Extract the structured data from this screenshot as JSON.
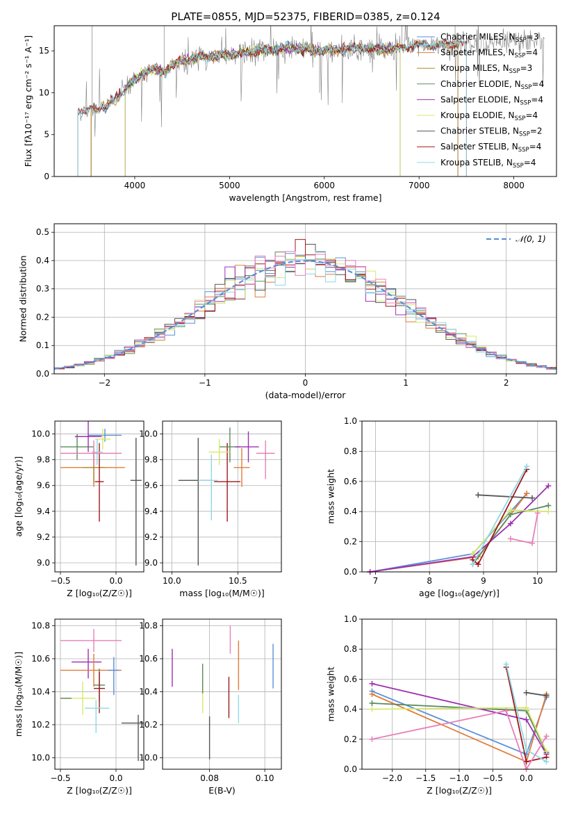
{
  "figure": {
    "title": "PLATE=0855, MJD=52375, FIBERID=0385, z=0.124"
  },
  "colors": {
    "Chabrier MILES": "#5b8fd6",
    "Salpeter MILES": "#e07b39",
    "Kroupa MILES": "#b08a2e",
    "Chabrier ELODIE": "#5a8a5a",
    "Salpeter ELODIE": "#9b30b0",
    "Kroupa ELODIE": "#d6e86a",
    "Chabrier STELIB": "#555555",
    "Salpeter STELIB": "#a01818",
    "Kroupa STELIB": "#8fd8e6",
    "pink": "#e87fb8",
    "data": "#808080"
  },
  "chart_data": [
    {
      "id": "spectrum",
      "type": "line",
      "xlabel": "wavelength [Angstrom, rest frame]",
      "ylabel": "Flux [fλ10⁻¹⁷ erg cm⁻² s⁻¹ A⁻¹]",
      "xlim": [
        3150,
        8450
      ],
      "ylim": [
        0,
        18
      ],
      "xticks": [
        4000,
        5000,
        6000,
        7000,
        8000
      ],
      "yticks": [
        0,
        5,
        10,
        15
      ],
      "grid": false,
      "legend_position": "right",
      "legend": [
        {
          "label": "Chabrier MILES, N",
          "sub": "SSP",
          "tail": "=3"
        },
        {
          "label": "Salpeter MILES, N",
          "sub": "SSP",
          "tail": "=4"
        },
        {
          "label": "Kroupa MILES, N",
          "sub": "SSP",
          "tail": "=3"
        },
        {
          "label": "Chabrier ELODIE, N",
          "sub": "SSP",
          "tail": "=4"
        },
        {
          "label": "Salpeter ELODIE, N",
          "sub": "SSP",
          "tail": "=4"
        },
        {
          "label": "Kroupa ELODIE, N",
          "sub": "SSP",
          "tail": "=4"
        },
        {
          "label": "Chabrier STELIB, N",
          "sub": "SSP",
          "tail": "=2"
        },
        {
          "label": "Salpeter STELIB, N",
          "sub": "SSP",
          "tail": "=4"
        },
        {
          "label": "Kroupa STELIB, N",
          "sub": "SSP",
          "tail": "=4"
        }
      ],
      "continuum": {
        "x": [
          3400,
          3500,
          3600,
          3700,
          3800,
          3900,
          4000,
          4100,
          4200,
          4300,
          4400,
          4500,
          4700,
          5000,
          5300,
          5600,
          6000,
          6300,
          6600,
          7000,
          7500,
          8000,
          8300
        ],
        "y": [
          7.7,
          7.9,
          8.2,
          8.3,
          9.3,
          10.5,
          11.5,
          12.4,
          12.8,
          12.5,
          13.3,
          13.8,
          14.3,
          14.5,
          15.0,
          15.3,
          15.0,
          15.3,
          15.2,
          15.6,
          15.9,
          16.1,
          16.3
        ]
      }
    },
    {
      "id": "residuals",
      "type": "bar",
      "xlabel": "(data-model)/error",
      "ylabel": "Normed distribution",
      "xlim": [
        -2.5,
        2.5
      ],
      "ylim": [
        0,
        0.53
      ],
      "xticks": [
        -2,
        -1,
        0,
        1,
        2
      ],
      "yticks": [
        0.0,
        0.1,
        0.2,
        0.3,
        0.4,
        0.5
      ],
      "grid": true,
      "legend_position": "top-right",
      "legend": "𝒩(0, 1)",
      "reference": {
        "type": "normal",
        "mu": 0,
        "sigma": 1
      },
      "bin_width": 0.1
    },
    {
      "id": "age-vs-Z",
      "type": "scatter",
      "xlabel": "Z [log₁₀(Z/Z☉)]",
      "ylabel": "age  [log₁₀(age/yr)]",
      "xlim": [
        -0.55,
        0.25
      ],
      "ylim": [
        8.93,
        10.1
      ],
      "xticks": [
        -0.5,
        0.0
      ],
      "yticks": [
        9.0,
        9.2,
        9.4,
        9.6,
        9.8,
        10.0
      ],
      "grid": true,
      "points": [
        {
          "model": "Chabrier MILES",
          "x": -0.1,
          "xerr": [
            0.15,
            0.15
          ],
          "y": 9.99,
          "yerr": [
            0.05,
            0.05
          ]
        },
        {
          "model": "Salpeter MILES",
          "x": -0.2,
          "xerr": [
            0.3,
            0.28
          ],
          "y": 9.74,
          "yerr": [
            0.15,
            0.15
          ]
        },
        {
          "model": "Kroupa MILES",
          "x": -0.2,
          "xerr": [
            0.1,
            0.1
          ],
          "y": 9.74,
          "yerr": [
            0.12,
            0.12
          ]
        },
        {
          "model": "Chabrier ELODIE",
          "x": -0.35,
          "xerr": [
            0.15,
            0.15
          ],
          "y": 9.9,
          "yerr": [
            0.1,
            0.1
          ]
        },
        {
          "model": "Salpeter ELODIE",
          "x": -0.25,
          "xerr": [
            0.12,
            0.12
          ],
          "y": 9.98,
          "yerr": [
            0.12,
            0.12
          ]
        },
        {
          "model": "Kroupa ELODIE",
          "x": -0.12,
          "xerr": [
            0.07,
            0.07
          ],
          "y": 9.96,
          "yerr": [
            0.08,
            0.08
          ]
        },
        {
          "model": "Chabrier STELIB",
          "x": 0.18,
          "xerr": [
            0.05,
            0.05
          ],
          "y": 9.64,
          "yerr": [
            0.66,
            0.33
          ]
        },
        {
          "model": "Salpeter STELIB",
          "x": -0.15,
          "xerr": [
            0.04,
            0.04
          ],
          "y": 9.63,
          "yerr": [
            0.31,
            0.3
          ]
        },
        {
          "model": "Kroupa STELIB",
          "x": -0.17,
          "xerr": [
            0.05,
            0.05
          ],
          "y": 9.86,
          "yerr": [
            0.1,
            0.1
          ]
        },
        {
          "model": "pink",
          "x": -0.2,
          "xerr": [
            0.3,
            0.25
          ],
          "y": 9.85,
          "yerr": [
            0.1,
            0.1
          ]
        }
      ]
    },
    {
      "id": "age-vs-mass",
      "type": "scatter",
      "xlabel": "mass [log₁₀(M/M☉)]",
      "ylabel": "",
      "xlim": [
        9.93,
        10.83
      ],
      "ylim": [
        8.93,
        10.1
      ],
      "xticks": [
        10.0,
        10.5
      ],
      "yticks": [
        9.0,
        9.2,
        9.4,
        9.6,
        9.8,
        10.0
      ],
      "grid": true,
      "points": [
        {
          "model": "Chabrier STELIB",
          "x": 10.2,
          "xerr": [
            0.15,
            0.1
          ],
          "y": 9.64,
          "yerr": [
            0.66,
            0.33
          ]
        },
        {
          "model": "Kroupa STELIB",
          "x": 10.3,
          "xerr": [
            0.1,
            0.05
          ],
          "y": 9.64,
          "yerr": [
            0.31,
            0.2
          ]
        },
        {
          "model": "Salpeter STELIB",
          "x": 10.42,
          "xerr": [
            0.1,
            0.1
          ],
          "y": 9.63,
          "yerr": [
            0.31,
            0.3
          ]
        },
        {
          "model": "Chabrier ELODIE",
          "x": 10.44,
          "xerr": [
            0.08,
            0.08
          ],
          "y": 9.9,
          "yerr": [
            0.12,
            0.15
          ]
        },
        {
          "model": "Kroupa ELODIE",
          "x": 10.36,
          "xerr": [
            0.08,
            0.08
          ],
          "y": 9.86,
          "yerr": [
            0.1,
            0.1
          ]
        },
        {
          "model": "Salpeter ELODIE",
          "x": 10.58,
          "xerr": [
            0.1,
            0.08
          ],
          "y": 9.9,
          "yerr": [
            0.12,
            0.12
          ]
        },
        {
          "model": "Salpeter MILES",
          "x": 10.53,
          "xerr": [
            0.06,
            0.06
          ],
          "y": 9.74,
          "yerr": [
            0.15,
            0.15
          ]
        },
        {
          "model": "pink",
          "x": 10.71,
          "xerr": [
            0.07,
            0.07
          ],
          "y": 9.85,
          "yerr": [
            0.2,
            0.1
          ]
        }
      ]
    },
    {
      "id": "mass-weight-vs-age",
      "type": "line",
      "xlabel": "age  [log₁₀(age/yr)]",
      "ylabel": "mass weight",
      "xlim": [
        6.75,
        10.35
      ],
      "ylim": [
        0,
        1.0
      ],
      "xticks": [
        7,
        8,
        9,
        10
      ],
      "yticks": [
        0.0,
        0.2,
        0.4,
        0.6,
        0.8,
        1.0
      ],
      "grid": true,
      "series": [
        {
          "model": "Chabrier MILES",
          "x": [
            6.9,
            8.8,
            9.8
          ],
          "y": [
            0.0,
            0.12,
            0.52
          ]
        },
        {
          "model": "Salpeter MILES",
          "x": [
            6.9,
            8.9,
            9.8
          ],
          "y": [
            0.0,
            0.1,
            0.52
          ]
        },
        {
          "model": "Chabrier ELODIE",
          "x": [
            8.8,
            9.5,
            10.2
          ],
          "y": [
            0.05,
            0.38,
            0.44
          ]
        },
        {
          "model": "Salpeter ELODIE",
          "x": [
            6.9,
            8.8,
            9.5,
            10.2
          ],
          "y": [
            0.0,
            0.1,
            0.32,
            0.57
          ]
        },
        {
          "model": "Kroupa ELODIE",
          "x": [
            8.8,
            9.5,
            10.2
          ],
          "y": [
            0.12,
            0.41,
            0.4
          ]
        },
        {
          "model": "Chabrier STELIB",
          "x": [
            8.9,
            9.9
          ],
          "y": [
            0.51,
            0.49
          ]
        },
        {
          "model": "Salpeter STELIB",
          "x": [
            8.8,
            8.9,
            9.8
          ],
          "y": [
            0.08,
            0.05,
            0.68
          ]
        },
        {
          "model": "Kroupa STELIB",
          "x": [
            8.8,
            9.8
          ],
          "y": [
            0.05,
            0.7
          ]
        },
        {
          "model": "pink",
          "x": [
            9.5,
            9.9,
            10.0
          ],
          "y": [
            0.22,
            0.19,
            0.39
          ]
        }
      ]
    },
    {
      "id": "mass-vs-Z",
      "type": "scatter",
      "xlabel": "Z [log₁₀(Z/Z☉)]",
      "ylabel": "mass [log₁₀(M/M☉)]",
      "xlim": [
        -0.55,
        0.25
      ],
      "ylim": [
        9.93,
        10.84
      ],
      "xticks": [
        -0.5,
        0.0
      ],
      "yticks": [
        10.0,
        10.2,
        10.4,
        10.6,
        10.8
      ],
      "grid": true,
      "points": [
        {
          "model": "pink",
          "x": -0.2,
          "xerr": [
            0.3,
            0.25
          ],
          "y": 10.71,
          "yerr": [
            0.07,
            0.07
          ]
        },
        {
          "model": "Salpeter ELODIE",
          "x": -0.25,
          "xerr": [
            0.15,
            0.12
          ],
          "y": 10.58,
          "yerr": [
            0.1,
            0.08
          ]
        },
        {
          "model": "Salpeter MILES",
          "x": -0.2,
          "xerr": [
            0.3,
            0.25
          ],
          "y": 10.53,
          "yerr": [
            0.1,
            0.1
          ]
        },
        {
          "model": "Chabrier MILES",
          "x": -0.02,
          "xerr": [
            0.05,
            0.05
          ],
          "y": 10.53,
          "yerr": [
            0.15,
            0.08
          ]
        },
        {
          "model": "Chabrier ELODIE",
          "x": -0.15,
          "xerr": [
            0.05,
            0.05
          ],
          "y": 10.44,
          "yerr": [
            0.1,
            0.1
          ]
        },
        {
          "model": "Salpeter STELIB",
          "x": -0.15,
          "xerr": [
            0.05,
            0.05
          ],
          "y": 10.42,
          "yerr": [
            0.15,
            0.1
          ]
        },
        {
          "model": "Kroupa ELODIE",
          "x": -0.3,
          "xerr": [
            0.2,
            0.12
          ],
          "y": 10.36,
          "yerr": [
            0.1,
            0.1
          ]
        },
        {
          "model": "Kroupa STELIB",
          "x": -0.18,
          "xerr": [
            0.1,
            0.12
          ],
          "y": 10.3,
          "yerr": [
            0.15,
            0.05
          ]
        },
        {
          "model": "Chabrier STELIB",
          "x": 0.2,
          "xerr": [
            0.15,
            0.05
          ],
          "y": 10.21,
          "yerr": [
            0.23,
            0.05
          ]
        },
        {
          "model": "Chabrier ELODIE",
          "x": -0.45,
          "xerr": [
            0.05,
            0.05
          ],
          "y": 10.36,
          "yerr": [
            0.0,
            0.0
          ]
        }
      ]
    },
    {
      "id": "mass-vs-ebv",
      "type": "scatter",
      "xlabel": "E(B-V)",
      "ylabel": "",
      "xlim": [
        0.063,
        0.106
      ],
      "ylim": [
        9.93,
        10.84
      ],
      "xticks": [
        0.08,
        0.1
      ],
      "yticks": [
        10.0,
        10.2,
        10.4,
        10.6,
        10.8
      ],
      "grid": true,
      "points": [
        {
          "model": "Salpeter ELODIE",
          "x": 0.0665,
          "y": 10.54,
          "yerr": [
            0.11,
            0.12
          ]
        },
        {
          "model": "Kroupa ELODIE",
          "x": 0.0775,
          "y": 10.36,
          "yerr": [
            0.09,
            0.12
          ]
        },
        {
          "model": "Chabrier ELODIE",
          "x": 0.0775,
          "y": 10.44,
          "yerr": [
            0.05,
            0.13
          ]
        },
        {
          "model": "Chabrier STELIB",
          "x": 0.08,
          "y": 10.09,
          "yerr": [
            0.1,
            0.16
          ]
        },
        {
          "model": "Salpeter STELIB",
          "x": 0.087,
          "y": 10.37,
          "yerr": [
            0.13,
            0.12
          ]
        },
        {
          "model": "pink",
          "x": 0.0875,
          "y": 10.72,
          "yerr": [
            0.09,
            0.08
          ]
        },
        {
          "model": "Salpeter MILES",
          "x": 0.0905,
          "y": 10.54,
          "yerr": [
            0.13,
            0.17
          ]
        },
        {
          "model": "Kroupa STELIB",
          "x": 0.0905,
          "y": 10.28,
          "yerr": [
            0.07,
            0.1
          ]
        },
        {
          "model": "Chabrier MILES",
          "x": 0.103,
          "y": 10.56,
          "yerr": [
            0.14,
            0.13
          ]
        }
      ]
    },
    {
      "id": "mass-weight-vs-Z",
      "type": "line",
      "xlabel": "Z [log₁₀(Z/Z☉)]",
      "ylabel": "mass weight",
      "xlim": [
        -2.45,
        0.45
      ],
      "ylim": [
        0,
        1.0
      ],
      "xticks": [
        -2.0,
        -1.5,
        -1.0,
        -0.5,
        0.0
      ],
      "yticks": [
        0.0,
        0.2,
        0.4,
        0.6,
        0.8,
        1.0
      ],
      "grid": true,
      "series": [
        {
          "model": "Chabrier MILES",
          "x": [
            -2.3,
            0.0,
            0.3
          ],
          "y": [
            0.52,
            0.1,
            0.48
          ]
        },
        {
          "model": "Salpeter MILES",
          "x": [
            -2.3,
            0.0,
            0.3
          ],
          "y": [
            0.5,
            0.05,
            0.5
          ]
        },
        {
          "model": "Chabrier ELODIE",
          "x": [
            -2.3,
            0.0,
            0.3
          ],
          "y": [
            0.44,
            0.39,
            0.11
          ]
        },
        {
          "model": "Salpeter ELODIE",
          "x": [
            -2.3,
            0.0,
            0.3
          ],
          "y": [
            0.57,
            0.33,
            0.1
          ]
        },
        {
          "model": "Kroupa ELODIE",
          "x": [
            -2.3,
            0.0,
            0.3
          ],
          "y": [
            0.4,
            0.41,
            0.12
          ]
        },
        {
          "model": "Chabrier STELIB",
          "x": [
            0.0,
            0.3
          ],
          "y": [
            0.51,
            0.49
          ]
        },
        {
          "model": "Salpeter STELIB",
          "x": [
            -0.3,
            0.0,
            0.3
          ],
          "y": [
            0.68,
            0.05,
            0.08
          ]
        },
        {
          "model": "Kroupa STELIB",
          "x": [
            -0.3,
            0.0,
            0.3
          ],
          "y": [
            0.7,
            0.13,
            0.05
          ]
        },
        {
          "model": "pink",
          "x": [
            -2.3,
            -0.3,
            0.0,
            0.3
          ],
          "y": [
            0.2,
            0.39,
            0.0,
            0.22
          ]
        }
      ]
    }
  ]
}
